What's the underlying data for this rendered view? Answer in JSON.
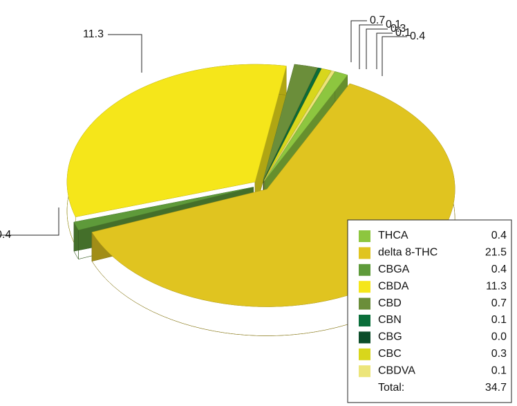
{
  "chart_data": {
    "type": "pie3d",
    "categories": [
      "THCA",
      "delta 8-THC",
      "CBGA",
      "CBDA",
      "CBD",
      "CBN",
      "CBG",
      "CBC",
      "CBDVA"
    ],
    "values": [
      0.4,
      21.5,
      0.4,
      11.3,
      0.7,
      0.1,
      0.0,
      0.3,
      0.1
    ],
    "value_labels": [
      "0.4",
      "21.5",
      "0.4",
      "11.3",
      "0.7",
      "0.1",
      "0.0",
      "0.3",
      "0.1"
    ],
    "colors": [
      "#8dc63f",
      "#e0c420",
      "#5e9a3a",
      "#f5e61a",
      "#6b8e3a",
      "#0a6e3a",
      "#0c4d2a",
      "#d8d61c",
      "#ece57a"
    ],
    "total_label": "Total:",
    "total": 34.7
  }
}
